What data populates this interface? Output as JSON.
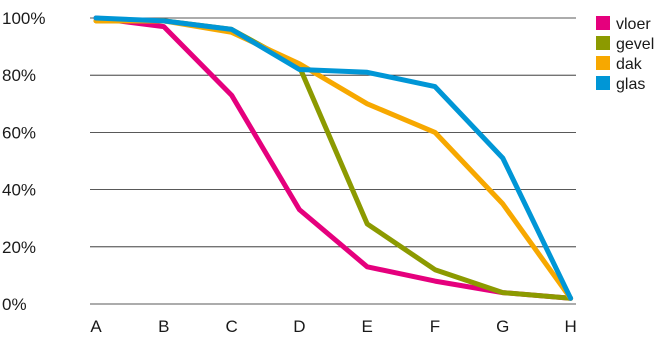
{
  "chart_data": {
    "type": "line",
    "title": "",
    "xlabel": "",
    "ylabel": "",
    "categories": [
      "A",
      "B",
      "C",
      "D",
      "E",
      "F",
      "G",
      "H"
    ],
    "ylim": [
      0,
      100
    ],
    "yticks": [
      0,
      20,
      40,
      60,
      80,
      100
    ],
    "ytick_labels": [
      "0%",
      "20%",
      "40%",
      "60%",
      "80%",
      "100%"
    ],
    "grid": true,
    "legend_position": "top-right",
    "series": [
      {
        "name": "vloer",
        "color": "#e5007d",
        "values": [
          100,
          97,
          73,
          33,
          13,
          8,
          4,
          2
        ]
      },
      {
        "name": "gevel",
        "color": "#8c9a00",
        "values": [
          99,
          99,
          96,
          83,
          28,
          12,
          4,
          2
        ]
      },
      {
        "name": "dak",
        "color": "#f7a800",
        "values": [
          99,
          99,
          95,
          84,
          70,
          60,
          35,
          2
        ]
      },
      {
        "name": "glas",
        "color": "#0096d6",
        "values": [
          100,
          99,
          96,
          82,
          81,
          76,
          51,
          2
        ]
      }
    ]
  }
}
